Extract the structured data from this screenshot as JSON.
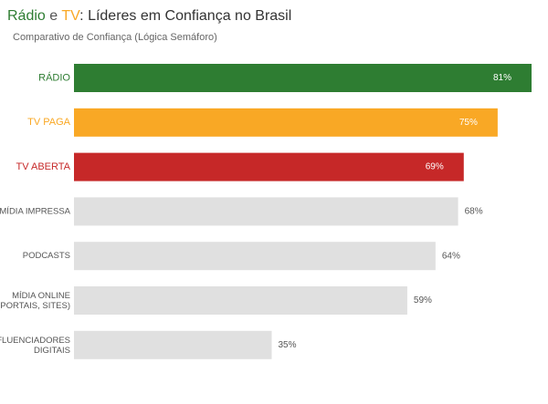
{
  "chart_data": {
    "type": "bar",
    "title_parts": [
      {
        "text": "Rádio",
        "color": "#2e7d32"
      },
      {
        "text": " e ",
        "color": "#555555"
      },
      {
        "text": "TV",
        "color": "#f9a825"
      },
      {
        "text": ": Líderes em Confiança no Brasil",
        "color": "#333333"
      }
    ],
    "subtitle": "Comparativo de Confiança (Lógica Semáforo)",
    "categories": [
      "RÁDIO",
      "TV PAGA",
      "TV ABERTA",
      "MÍDIA IMPRESSA",
      "PODCASTS",
      "MÍDIA ONLINE\n(PORTAIS, SITES)",
      "INFLUENCIADORES\nDIGITAIS"
    ],
    "values": [
      81,
      75,
      69,
      68,
      64,
      59,
      35
    ],
    "value_labels": [
      "81%",
      "75%",
      "69%",
      "68%",
      "64%",
      "59%",
      "35%"
    ],
    "colors": [
      "#2e7d32",
      "#f9a825",
      "#c62828",
      "#e0e0e0",
      "#e0e0e0",
      "#e0e0e0",
      "#e0e0e0"
    ]
  }
}
